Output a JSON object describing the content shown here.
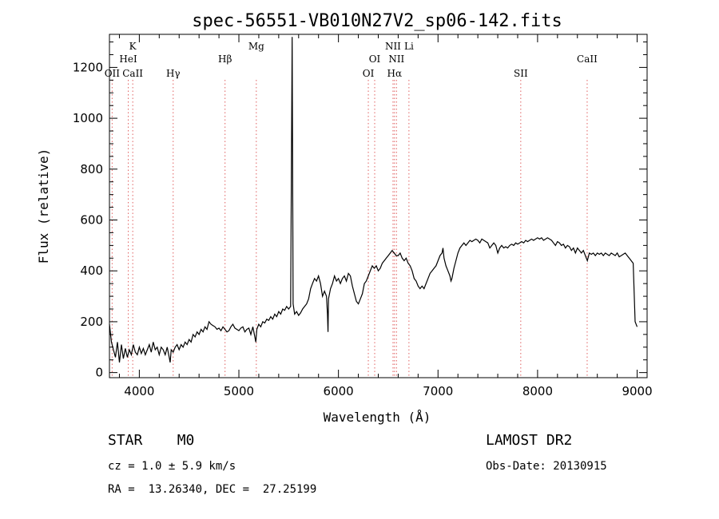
{
  "chart_data": {
    "type": "line",
    "title": "spec-56551-VB010N27V2_sp06-142.fits",
    "xlabel": "Wavelength (Å)",
    "ylabel": "Flux (relative)",
    "xlim": [
      3700,
      9100
    ],
    "ylim": [
      -20,
      1330
    ],
    "xticks": [
      4000,
      5000,
      6000,
      7000,
      8000,
      9000
    ],
    "yticks": [
      0,
      200,
      400,
      600,
      800,
      1000,
      1200
    ],
    "grid": false,
    "line_color": "#000000",
    "marker_color": "#e06060",
    "series": [
      {
        "values": [
          [
            3700,
            190
          ],
          [
            3720,
            120
          ],
          [
            3740,
            90
          ],
          [
            3760,
            60
          ],
          [
            3780,
            120
          ],
          [
            3800,
            40
          ],
          [
            3820,
            110
          ],
          [
            3840,
            55
          ],
          [
            3860,
            95
          ],
          [
            3880,
            60
          ],
          [
            3900,
            90
          ],
          [
            3920,
            70
          ],
          [
            3940,
            110
          ],
          [
            3960,
            80
          ],
          [
            3980,
            70
          ],
          [
            4000,
            100
          ],
          [
            4020,
            75
          ],
          [
            4040,
            95
          ],
          [
            4060,
            70
          ],
          [
            4080,
            90
          ],
          [
            4100,
            110
          ],
          [
            4120,
            80
          ],
          [
            4140,
            120
          ],
          [
            4160,
            90
          ],
          [
            4180,
            100
          ],
          [
            4200,
            70
          ],
          [
            4220,
            100
          ],
          [
            4240,
            90
          ],
          [
            4260,
            70
          ],
          [
            4280,
            100
          ],
          [
            4300,
            60
          ],
          [
            4310,
            40
          ],
          [
            4320,
            90
          ],
          [
            4340,
            80
          ],
          [
            4360,
            100
          ],
          [
            4380,
            110
          ],
          [
            4400,
            90
          ],
          [
            4420,
            110
          ],
          [
            4440,
            100
          ],
          [
            4460,
            120
          ],
          [
            4480,
            110
          ],
          [
            4500,
            130
          ],
          [
            4520,
            120
          ],
          [
            4540,
            150
          ],
          [
            4560,
            140
          ],
          [
            4580,
            160
          ],
          [
            4600,
            150
          ],
          [
            4620,
            170
          ],
          [
            4640,
            160
          ],
          [
            4660,
            180
          ],
          [
            4680,
            170
          ],
          [
            4700,
            200
          ],
          [
            4720,
            190
          ],
          [
            4740,
            185
          ],
          [
            4760,
            180
          ],
          [
            4780,
            170
          ],
          [
            4800,
            175
          ],
          [
            4820,
            165
          ],
          [
            4840,
            180
          ],
          [
            4860,
            170
          ],
          [
            4880,
            160
          ],
          [
            4900,
            165
          ],
          [
            4920,
            180
          ],
          [
            4940,
            190
          ],
          [
            4960,
            175
          ],
          [
            4980,
            170
          ],
          [
            5000,
            165
          ],
          [
            5020,
            175
          ],
          [
            5040,
            180
          ],
          [
            5060,
            160
          ],
          [
            5080,
            170
          ],
          [
            5100,
            175
          ],
          [
            5120,
            150
          ],
          [
            5140,
            180
          ],
          [
            5160,
            140
          ],
          [
            5170,
            120
          ],
          [
            5180,
            170
          ],
          [
            5200,
            190
          ],
          [
            5220,
            180
          ],
          [
            5240,
            200
          ],
          [
            5260,
            195
          ],
          [
            5280,
            210
          ],
          [
            5300,
            205
          ],
          [
            5320,
            220
          ],
          [
            5340,
            210
          ],
          [
            5360,
            230
          ],
          [
            5380,
            220
          ],
          [
            5400,
            240
          ],
          [
            5420,
            230
          ],
          [
            5440,
            250
          ],
          [
            5460,
            245
          ],
          [
            5480,
            260
          ],
          [
            5500,
            250
          ],
          [
            5520,
            260
          ],
          [
            5535,
            1320
          ],
          [
            5545,
            270
          ],
          [
            5560,
            230
          ],
          [
            5580,
            240
          ],
          [
            5600,
            225
          ],
          [
            5620,
            235
          ],
          [
            5640,
            250
          ],
          [
            5660,
            260
          ],
          [
            5680,
            270
          ],
          [
            5700,
            290
          ],
          [
            5720,
            330
          ],
          [
            5740,
            350
          ],
          [
            5760,
            370
          ],
          [
            5780,
            360
          ],
          [
            5800,
            380
          ],
          [
            5820,
            350
          ],
          [
            5840,
            300
          ],
          [
            5860,
            320
          ],
          [
            5880,
            300
          ],
          [
            5890,
            230
          ],
          [
            5895,
            160
          ],
          [
            5900,
            290
          ],
          [
            5920,
            330
          ],
          [
            5940,
            350
          ],
          [
            5960,
            380
          ],
          [
            5980,
            360
          ],
          [
            6000,
            370
          ],
          [
            6020,
            350
          ],
          [
            6040,
            370
          ],
          [
            6060,
            380
          ],
          [
            6080,
            360
          ],
          [
            6100,
            390
          ],
          [
            6120,
            380
          ],
          [
            6140,
            340
          ],
          [
            6160,
            310
          ],
          [
            6180,
            280
          ],
          [
            6200,
            270
          ],
          [
            6220,
            290
          ],
          [
            6240,
            310
          ],
          [
            6260,
            350
          ],
          [
            6280,
            360
          ],
          [
            6300,
            380
          ],
          [
            6320,
            400
          ],
          [
            6340,
            420
          ],
          [
            6360,
            410
          ],
          [
            6380,
            420
          ],
          [
            6400,
            400
          ],
          [
            6420,
            410
          ],
          [
            6440,
            430
          ],
          [
            6460,
            440
          ],
          [
            6480,
            450
          ],
          [
            6500,
            460
          ],
          [
            6520,
            470
          ],
          [
            6540,
            480
          ],
          [
            6560,
            470
          ],
          [
            6580,
            460
          ],
          [
            6600,
            460
          ],
          [
            6620,
            470
          ],
          [
            6640,
            450
          ],
          [
            6660,
            440
          ],
          [
            6680,
            450
          ],
          [
            6700,
            430
          ],
          [
            6720,
            420
          ],
          [
            6740,
            400
          ],
          [
            6760,
            370
          ],
          [
            6780,
            360
          ],
          [
            6800,
            340
          ],
          [
            6820,
            330
          ],
          [
            6840,
            340
          ],
          [
            6860,
            330
          ],
          [
            6880,
            350
          ],
          [
            6900,
            370
          ],
          [
            6920,
            390
          ],
          [
            6940,
            400
          ],
          [
            6960,
            410
          ],
          [
            6980,
            420
          ],
          [
            7000,
            440
          ],
          [
            7020,
            460
          ],
          [
            7040,
            470
          ],
          [
            7050,
            490
          ],
          [
            7060,
            450
          ],
          [
            7080,
            420
          ],
          [
            7100,
            400
          ],
          [
            7120,
            380
          ],
          [
            7130,
            360
          ],
          [
            7140,
            370
          ],
          [
            7160,
            410
          ],
          [
            7180,
            440
          ],
          [
            7200,
            470
          ],
          [
            7220,
            490
          ],
          [
            7240,
            500
          ],
          [
            7260,
            510
          ],
          [
            7280,
            500
          ],
          [
            7300,
            510
          ],
          [
            7320,
            520
          ],
          [
            7340,
            515
          ],
          [
            7360,
            520
          ],
          [
            7380,
            525
          ],
          [
            7400,
            520
          ],
          [
            7420,
            510
          ],
          [
            7440,
            525
          ],
          [
            7460,
            520
          ],
          [
            7480,
            515
          ],
          [
            7500,
            510
          ],
          [
            7520,
            490
          ],
          [
            7540,
            500
          ],
          [
            7560,
            510
          ],
          [
            7580,
            500
          ],
          [
            7600,
            470
          ],
          [
            7620,
            490
          ],
          [
            7640,
            500
          ],
          [
            7660,
            490
          ],
          [
            7680,
            495
          ],
          [
            7700,
            490
          ],
          [
            7720,
            500
          ],
          [
            7740,
            505
          ],
          [
            7760,
            500
          ],
          [
            7780,
            510
          ],
          [
            7800,
            505
          ],
          [
            7820,
            510
          ],
          [
            7840,
            515
          ],
          [
            7860,
            510
          ],
          [
            7880,
            520
          ],
          [
            7900,
            515
          ],
          [
            7920,
            520
          ],
          [
            7940,
            525
          ],
          [
            7960,
            520
          ],
          [
            7980,
            525
          ],
          [
            8000,
            530
          ],
          [
            8020,
            525
          ],
          [
            8040,
            530
          ],
          [
            8060,
            520
          ],
          [
            8080,
            525
          ],
          [
            8100,
            530
          ],
          [
            8120,
            525
          ],
          [
            8140,
            520
          ],
          [
            8160,
            510
          ],
          [
            8180,
            500
          ],
          [
            8200,
            515
          ],
          [
            8220,
            510
          ],
          [
            8240,
            500
          ],
          [
            8260,
            505
          ],
          [
            8280,
            490
          ],
          [
            8300,
            500
          ],
          [
            8320,
            495
          ],
          [
            8340,
            480
          ],
          [
            8360,
            490
          ],
          [
            8380,
            470
          ],
          [
            8400,
            490
          ],
          [
            8420,
            480
          ],
          [
            8440,
            470
          ],
          [
            8460,
            480
          ],
          [
            8480,
            460
          ],
          [
            8500,
            440
          ],
          [
            8520,
            470
          ],
          [
            8540,
            465
          ],
          [
            8560,
            470
          ],
          [
            8580,
            460
          ],
          [
            8600,
            470
          ],
          [
            8620,
            465
          ],
          [
            8640,
            470
          ],
          [
            8660,
            460
          ],
          [
            8680,
            470
          ],
          [
            8700,
            465
          ],
          [
            8720,
            460
          ],
          [
            8740,
            470
          ],
          [
            8760,
            465
          ],
          [
            8780,
            460
          ],
          [
            8800,
            470
          ],
          [
            8820,
            455
          ],
          [
            8840,
            460
          ],
          [
            8860,
            465
          ],
          [
            8880,
            470
          ],
          [
            8900,
            460
          ],
          [
            8920,
            450
          ],
          [
            8940,
            440
          ],
          [
            8960,
            430
          ],
          [
            8980,
            200
          ],
          [
            9000,
            180
          ]
        ]
      }
    ],
    "lines": [
      {
        "label": "CaII",
        "x": 3934,
        "top": 3
      },
      {
        "label": "K",
        "x": 3934,
        "top": 1
      },
      {
        "label": "OII",
        "x": 3727,
        "top": 3
      },
      {
        "label": "HeI",
        "x": 3889,
        "top": 2
      },
      {
        "label": "Hγ",
        "x": 4340,
        "top": 3
      },
      {
        "label": "Hβ",
        "x": 4861,
        "top": 2
      },
      {
        "label": "Mg",
        "x": 5175,
        "top": 1
      },
      {
        "label": "OI",
        "x": 6300,
        "top": 3
      },
      {
        "label": "OI",
        "x": 6364,
        "top": 2
      },
      {
        "label": "NII",
        "x": 6548,
        "top": 1
      },
      {
        "label": "NII",
        "x": 6583,
        "top": 2
      },
      {
        "label": "Hα",
        "x": 6563,
        "top": 3
      },
      {
        "label": "Li",
        "x": 6708,
        "top": 1
      },
      {
        "label": "SII",
        "x": 7831,
        "top": 3
      },
      {
        "label": "CaII",
        "x": 8498,
        "top": 2
      }
    ]
  },
  "info": {
    "class": "STAR",
    "subclass": "M0",
    "survey": "LAMOST DR2",
    "cz": "cz = 1.0 ± 5.9 km/s",
    "obs_date": "Obs-Date: 20130915",
    "coords": "RA =  13.26340, DEC =  27.25199"
  }
}
